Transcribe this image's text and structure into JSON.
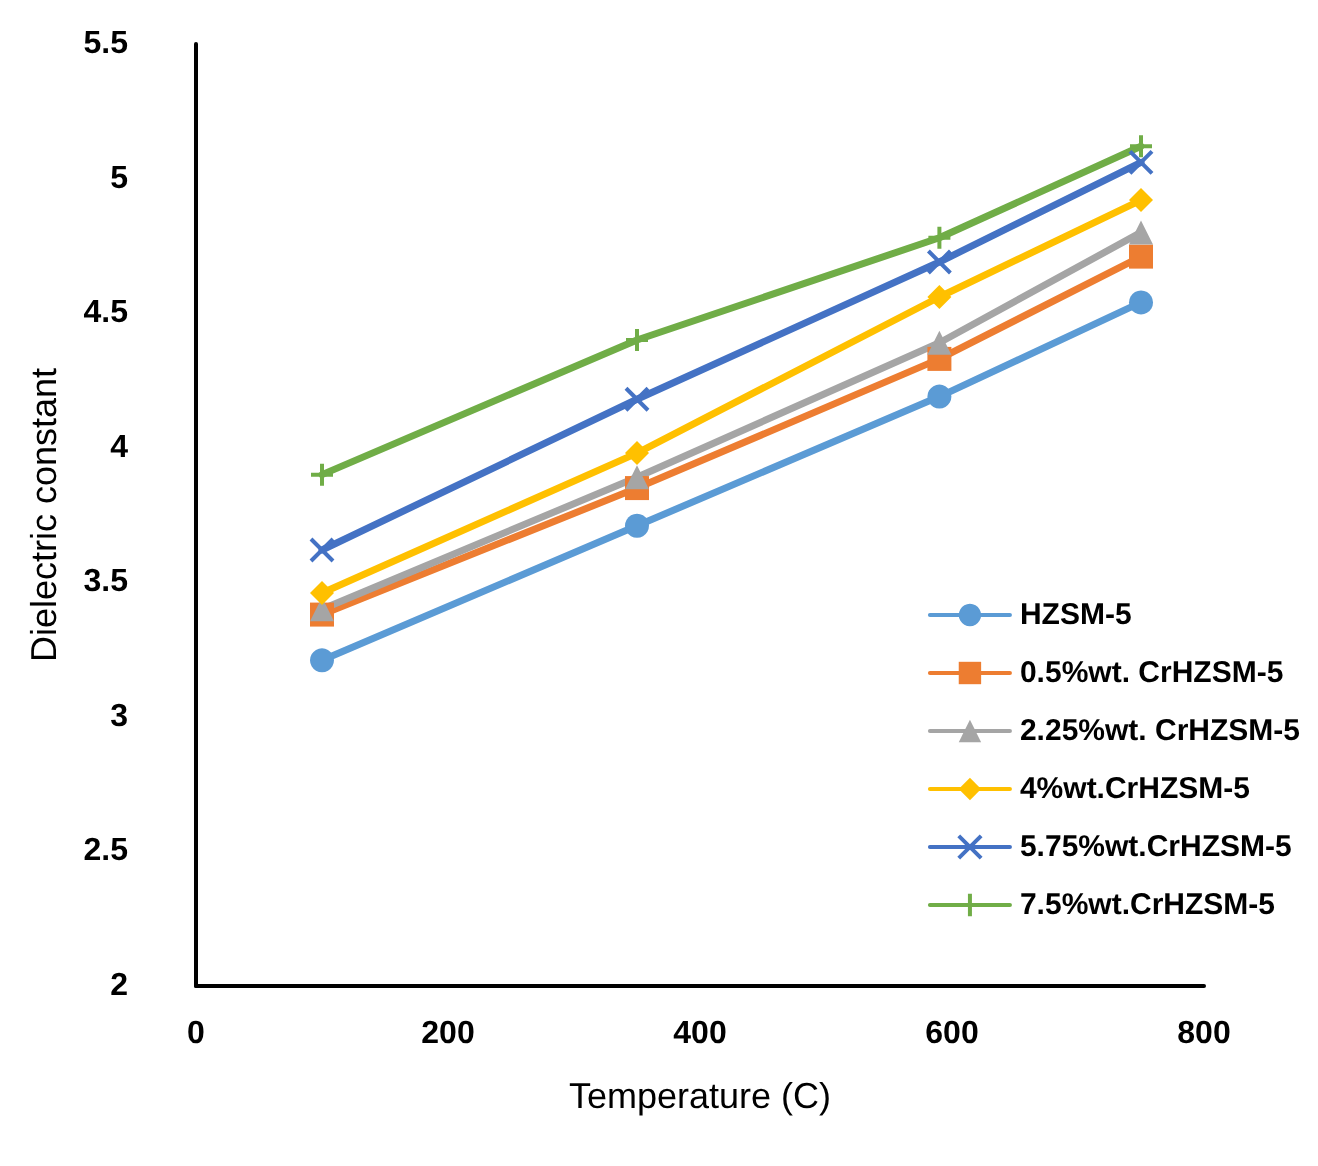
{
  "chart_data": {
    "type": "line",
    "xlabel": "Temperature (C)",
    "ylabel": "Dielectric constant",
    "x": [
      100,
      350,
      590,
      750
    ],
    "xlim": [
      0,
      800
    ],
    "xticks": [
      0,
      200,
      400,
      600,
      800
    ],
    "ylim": [
      2,
      5.5
    ],
    "yticks": [
      2,
      2.5,
      3,
      3.5,
      4,
      4.5,
      5,
      5.5
    ],
    "grid": false,
    "legend": "bottom right",
    "series": [
      {
        "name": "HZSM-5",
        "color": "#5b9bd5",
        "marker": "circle",
        "values": [
          3.21,
          3.71,
          4.19,
          4.54
        ]
      },
      {
        "name": "0.5%wt. CrHZSM-5",
        "color": "#ed7d31",
        "marker": "square",
        "values": [
          3.38,
          3.85,
          4.33,
          4.71
        ]
      },
      {
        "name": "2.25%wt. CrHZSM-5",
        "color": "#a5a5a5",
        "marker": "triangle",
        "values": [
          3.4,
          3.89,
          4.39,
          4.8
        ]
      },
      {
        "name": "4%wt.CrHZSM-5",
        "color": "#ffc000",
        "marker": "diamond",
        "values": [
          3.46,
          3.98,
          4.56,
          4.92
        ]
      },
      {
        "name": "5.75%wt.CrHZSM-5",
        "color": "#4472c4",
        "marker": "x",
        "values": [
          3.62,
          4.18,
          4.69,
          5.06
        ]
      },
      {
        "name": "7.5%wt.CrHZSM-5",
        "color": "#70ad47",
        "marker": "cross",
        "values": [
          3.9,
          4.4,
          4.78,
          5.12
        ]
      }
    ]
  }
}
